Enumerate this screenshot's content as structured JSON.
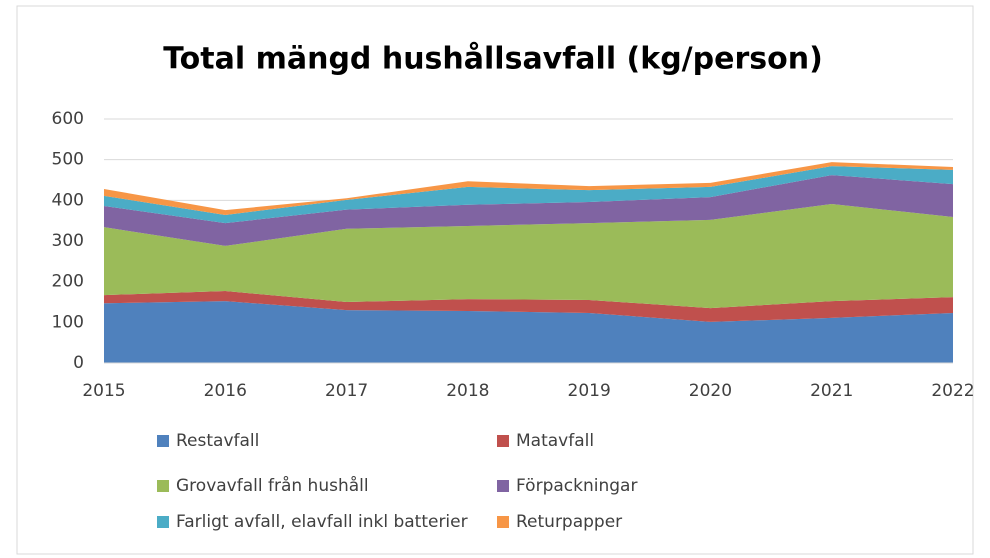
{
  "chart_data": {
    "type": "area",
    "stacked": true,
    "title": "Total mängd hushållsavfall (kg/person)",
    "x": [
      2015,
      2016,
      2017,
      2018,
      2019,
      2020,
      2021,
      2022
    ],
    "xlim": [
      2015,
      2022
    ],
    "xticks": [
      2015,
      2016,
      2017,
      2018,
      2019,
      2020,
      2021,
      2022
    ],
    "ylim": [
      0,
      600
    ],
    "yticks": [
      0,
      100,
      200,
      300,
      400,
      500,
      600
    ],
    "grid": true,
    "legend": "bottom",
    "series": [
      {
        "name": "Restavfall",
        "color": "#4f81bd",
        "values": [
          147,
          152,
          130,
          128,
          123,
          101,
          111,
          123
        ]
      },
      {
        "name": "Matavfall",
        "color": "#c0504d",
        "values": [
          20,
          25,
          20,
          29,
          32,
          34,
          41,
          39
        ]
      },
      {
        "name": "Grovavfall från hushåll",
        "color": "#9bbb59",
        "values": [
          167,
          111,
          180,
          180,
          189,
          217,
          239,
          197
        ]
      },
      {
        "name": "Förpackningar",
        "color": "#8064a2",
        "values": [
          52,
          56,
          47,
          52,
          52,
          56,
          71,
          81
        ]
      },
      {
        "name": "Farligt avfall, elavfall inkl batterier",
        "color": "#4bacc6",
        "values": [
          25,
          20,
          24,
          44,
          29,
          25,
          22,
          35
        ]
      },
      {
        "name": "Returpapper",
        "color": "#f79646",
        "values": [
          17,
          12,
          4,
          14,
          10,
          10,
          10,
          7
        ]
      }
    ]
  }
}
